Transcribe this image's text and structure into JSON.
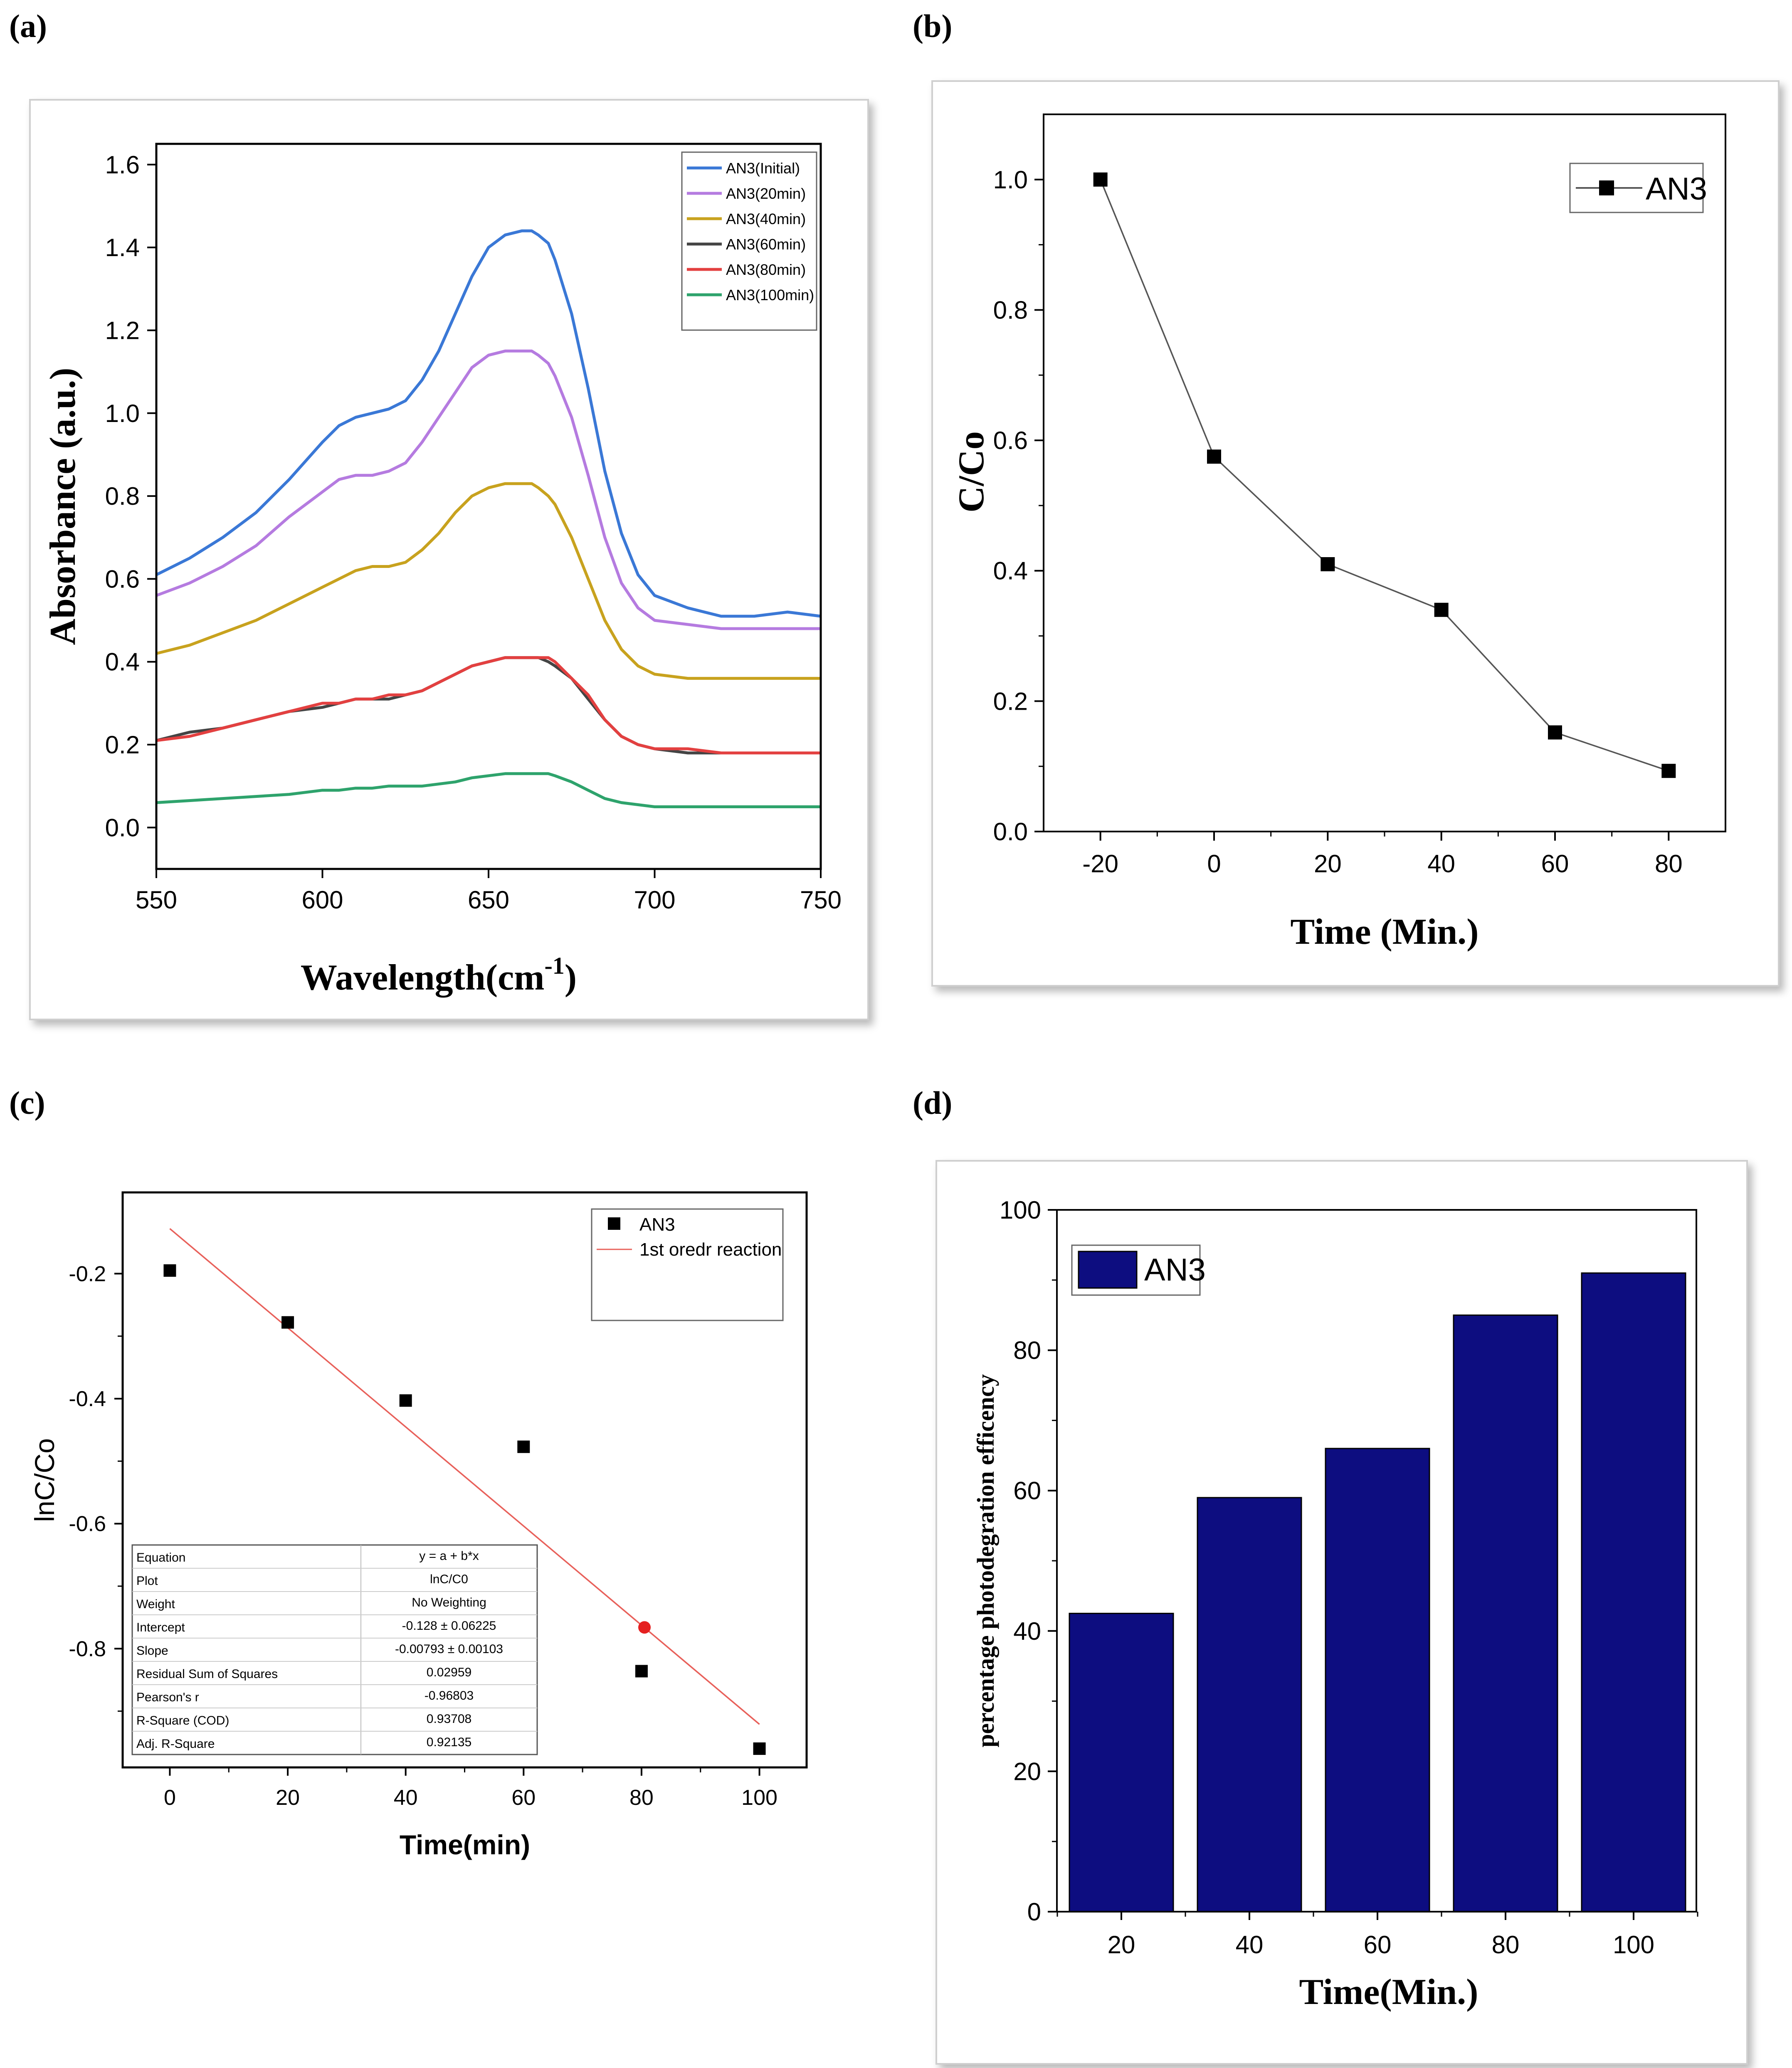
{
  "panels": {
    "a": "(a)",
    "b": "(b)",
    "c": "(c)",
    "d": "(d)"
  },
  "chart_data": [
    {
      "id": "a",
      "type": "line",
      "xlabel": "Wavelength(cm",
      "xlabel_sup": "-1",
      "xlabel_close": ")",
      "ylabel": "Absorbance (a.u.)",
      "xlim": [
        550,
        750
      ],
      "ylim": [
        -0.1,
        1.65
      ],
      "xticks": [
        "550",
        "600",
        "650",
        "700",
        "750"
      ],
      "yticks": [
        "0.0",
        "0.2",
        "0.4",
        "0.6",
        "0.8",
        "1.0",
        "1.2",
        "1.4",
        "1.6"
      ],
      "legend_position": "top-right",
      "x": [
        550,
        560,
        570,
        580,
        590,
        600,
        605,
        610,
        615,
        620,
        625,
        630,
        635,
        640,
        645,
        650,
        655,
        660,
        663,
        665,
        668,
        670,
        675,
        680,
        685,
        690,
        695,
        700,
        710,
        720,
        730,
        740,
        750
      ],
      "series": [
        {
          "name": "AN3(Initial)",
          "color": "#3a78d6",
          "values": [
            0.61,
            0.65,
            0.7,
            0.76,
            0.84,
            0.93,
            0.97,
            0.99,
            1.0,
            1.01,
            1.03,
            1.08,
            1.15,
            1.24,
            1.33,
            1.4,
            1.43,
            1.44,
            1.44,
            1.43,
            1.41,
            1.37,
            1.24,
            1.06,
            0.86,
            0.71,
            0.61,
            0.56,
            0.53,
            0.51,
            0.51,
            0.52,
            0.51
          ]
        },
        {
          "name": "AN3(20min)",
          "color": "#b57be0",
          "values": [
            0.56,
            0.59,
            0.63,
            0.68,
            0.75,
            0.81,
            0.84,
            0.85,
            0.85,
            0.86,
            0.88,
            0.93,
            0.99,
            1.05,
            1.11,
            1.14,
            1.15,
            1.15,
            1.15,
            1.14,
            1.12,
            1.09,
            0.99,
            0.85,
            0.7,
            0.59,
            0.53,
            0.5,
            0.49,
            0.48,
            0.48,
            0.48,
            0.48
          ]
        },
        {
          "name": "AN3(40min)",
          "color": "#c8a21e",
          "values": [
            0.42,
            0.44,
            0.47,
            0.5,
            0.54,
            0.58,
            0.6,
            0.62,
            0.63,
            0.63,
            0.64,
            0.67,
            0.71,
            0.76,
            0.8,
            0.82,
            0.83,
            0.83,
            0.83,
            0.82,
            0.8,
            0.78,
            0.7,
            0.6,
            0.5,
            0.43,
            0.39,
            0.37,
            0.36,
            0.36,
            0.36,
            0.36,
            0.36
          ]
        },
        {
          "name": "AN3(60min)",
          "color": "#444444",
          "values": [
            0.21,
            0.23,
            0.24,
            0.26,
            0.28,
            0.29,
            0.3,
            0.31,
            0.31,
            0.31,
            0.32,
            0.33,
            0.35,
            0.37,
            0.39,
            0.4,
            0.41,
            0.41,
            0.41,
            0.41,
            0.4,
            0.39,
            0.36,
            0.31,
            0.26,
            0.22,
            0.2,
            0.19,
            0.18,
            0.18,
            0.18,
            0.18,
            0.18
          ]
        },
        {
          "name": "AN3(80min)",
          "color": "#e34040",
          "values": [
            0.21,
            0.22,
            0.24,
            0.26,
            0.28,
            0.3,
            0.3,
            0.31,
            0.31,
            0.32,
            0.32,
            0.33,
            0.35,
            0.37,
            0.39,
            0.4,
            0.41,
            0.41,
            0.41,
            0.41,
            0.41,
            0.4,
            0.36,
            0.32,
            0.26,
            0.22,
            0.2,
            0.19,
            0.19,
            0.18,
            0.18,
            0.18,
            0.18
          ]
        },
        {
          "name": "AN3(100min)",
          "color": "#2ea36c",
          "values": [
            0.06,
            0.065,
            0.07,
            0.075,
            0.08,
            0.09,
            0.09,
            0.095,
            0.095,
            0.1,
            0.1,
            0.1,
            0.105,
            0.11,
            0.12,
            0.125,
            0.13,
            0.13,
            0.13,
            0.13,
            0.13,
            0.125,
            0.11,
            0.09,
            0.07,
            0.06,
            0.055,
            0.05,
            0.05,
            0.05,
            0.05,
            0.05,
            0.05
          ]
        }
      ]
    },
    {
      "id": "b",
      "type": "line",
      "xlabel": "Time (Min.)",
      "ylabel": "C/Co",
      "xlim": [
        -30,
        90
      ],
      "ylim": [
        0,
        1.1
      ],
      "xticks": [
        "-20",
        "0",
        "20",
        "40",
        "60",
        "80"
      ],
      "yticks": [
        "0.0",
        "0.2",
        "0.4",
        "0.6",
        "0.8",
        "1.0"
      ],
      "legend_position": "top-right",
      "series": [
        {
          "name": "AN3",
          "color": "#555555",
          "x": [
            -20,
            0,
            20,
            40,
            60,
            80
          ],
          "values": [
            1.0,
            0.575,
            0.41,
            0.34,
            0.152,
            0.093
          ]
        }
      ]
    },
    {
      "id": "c",
      "type": "scatter",
      "xlabel": "Time(min)",
      "ylabel": "lnC/Co",
      "xlim": [
        -8,
        108
      ],
      "ylim": [
        -0.99,
        -0.07
      ],
      "xticks": [
        "0",
        "20",
        "40",
        "60",
        "80",
        "100"
      ],
      "yticks": [
        "-0.2",
        "-0.4",
        "-0.6",
        "-0.8"
      ],
      "legend_position": "top-right",
      "series": [
        {
          "name": "AN3",
          "color": "#000000",
          "x": [
            0,
            20,
            40,
            60,
            80,
            100
          ],
          "values": [
            -0.195,
            -0.278,
            -0.403,
            -0.477,
            -0.836,
            -0.96
          ]
        },
        {
          "name": "1st oredr reaction",
          "color": "#e8605a",
          "x": [
            0,
            100
          ],
          "values": [
            -0.128,
            -0.921
          ]
        }
      ],
      "highlight_point": {
        "x": 80.5,
        "y": -0.766,
        "color": "#e52020"
      },
      "fit_table": [
        [
          "Equation",
          "y = a + b*x"
        ],
        [
          "Plot",
          "lnC/C0"
        ],
        [
          "Weight",
          "No Weighting"
        ],
        [
          "Intercept",
          "-0.128 ± 0.06225"
        ],
        [
          "Slope",
          "-0.00793 ± 0.00103"
        ],
        [
          "Residual Sum of Squares",
          "0.02959"
        ],
        [
          "Pearson's r",
          "-0.96803"
        ],
        [
          "R-Square (COD)",
          "0.93708"
        ],
        [
          "Adj. R-Square",
          "0.92135"
        ]
      ]
    },
    {
      "id": "d",
      "type": "bar",
      "xlabel": "Time(Min.)",
      "ylabel": "percentage photodegration efficency",
      "categories": [
        "20",
        "40",
        "60",
        "80",
        "100"
      ],
      "ylim": [
        0,
        100
      ],
      "yticks": [
        "0",
        "20",
        "40",
        "60",
        "80",
        "100"
      ],
      "legend_position": "top-left",
      "series": [
        {
          "name": "AN3",
          "color": "#0d0d80",
          "values": [
            42.5,
            59,
            66,
            85,
            91
          ]
        }
      ]
    }
  ]
}
